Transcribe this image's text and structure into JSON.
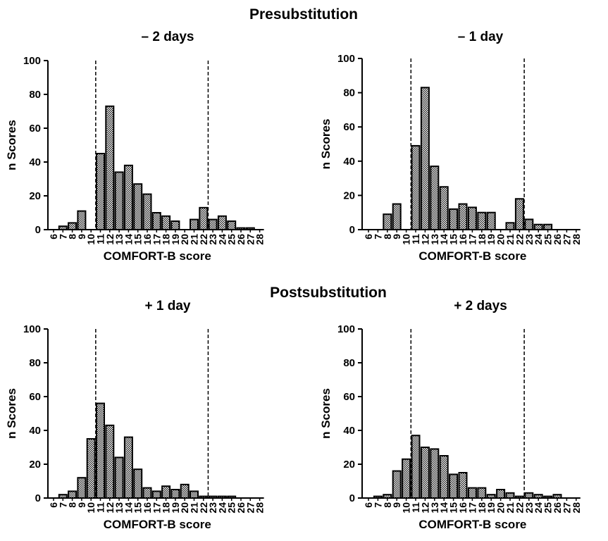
{
  "headers": {
    "pre": "Presubstitution",
    "post": "Postsubstitution"
  },
  "chart_data": [
    {
      "type": "bar",
      "title": "– 2 days",
      "xlabel": "COMFORT-B score",
      "ylabel": "n Scores",
      "ylim": [
        0,
        100
      ],
      "yticks": [
        0,
        20,
        40,
        60,
        80,
        100
      ],
      "categories": [
        "6",
        "7",
        "8",
        "9",
        "10",
        "11",
        "12",
        "13",
        "14",
        "15",
        "16",
        "17",
        "18",
        "19",
        "20",
        "21",
        "22",
        "23",
        "24",
        "25",
        "26",
        "27",
        "28"
      ],
      "values": [
        0,
        2,
        4,
        11,
        0,
        45,
        73,
        34,
        38,
        27,
        21,
        10,
        8,
        5,
        0,
        6,
        13,
        6,
        8,
        5,
        1,
        1,
        0
      ],
      "cutoff_lines": [
        10.5,
        22.5
      ]
    },
    {
      "type": "bar",
      "title": "– 1 day",
      "xlabel": "COMFORT-B score",
      "ylabel": "n Scores",
      "ylim": [
        0,
        100
      ],
      "yticks": [
        0,
        20,
        40,
        60,
        80,
        100
      ],
      "categories": [
        "6",
        "7",
        "8",
        "9",
        "10",
        "11",
        "12",
        "13",
        "14",
        "15",
        "16",
        "17",
        "18",
        "19",
        "20",
        "21",
        "22",
        "23",
        "24",
        "25",
        "26",
        "27",
        "28"
      ],
      "values": [
        0,
        0,
        9,
        15,
        0,
        49,
        83,
        37,
        25,
        12,
        15,
        13,
        10,
        10,
        0,
        4,
        18,
        6,
        3,
        3,
        0,
        0,
        0
      ],
      "cutoff_lines": [
        10.5,
        22.5
      ]
    },
    {
      "type": "bar",
      "title": "+ 1 day",
      "xlabel": "COMFORT-B score",
      "ylabel": "n Scores",
      "ylim": [
        0,
        100
      ],
      "yticks": [
        0,
        20,
        40,
        60,
        80,
        100
      ],
      "categories": [
        "6",
        "7",
        "8",
        "9",
        "10",
        "11",
        "12",
        "13",
        "14",
        "15",
        "16",
        "17",
        "18",
        "19",
        "20",
        "21",
        "22",
        "23",
        "24",
        "25",
        "26",
        "27",
        "28"
      ],
      "values": [
        0,
        2,
        4,
        12,
        35,
        56,
        43,
        24,
        36,
        17,
        6,
        4,
        7,
        5,
        8,
        4,
        1,
        1,
        1,
        1,
        0,
        0,
        0
      ],
      "cutoff_lines": [
        10.5,
        22.5
      ]
    },
    {
      "type": "bar",
      "title": "+ 2 days",
      "xlabel": "COMFORT-B score",
      "ylabel": "n Scores",
      "ylim": [
        0,
        100
      ],
      "yticks": [
        0,
        20,
        40,
        60,
        80,
        100
      ],
      "categories": [
        "6",
        "7",
        "8",
        "9",
        "10",
        "11",
        "12",
        "13",
        "14",
        "15",
        "16",
        "17",
        "18",
        "19",
        "20",
        "21",
        "22",
        "23",
        "24",
        "25",
        "26",
        "27",
        "28"
      ],
      "values": [
        0,
        1,
        2,
        16,
        23,
        37,
        30,
        29,
        25,
        14,
        15,
        6,
        6,
        2,
        5,
        3,
        1,
        3,
        2,
        1,
        2,
        0,
        0
      ],
      "cutoff_lines": [
        10.5,
        22.5
      ]
    }
  ]
}
